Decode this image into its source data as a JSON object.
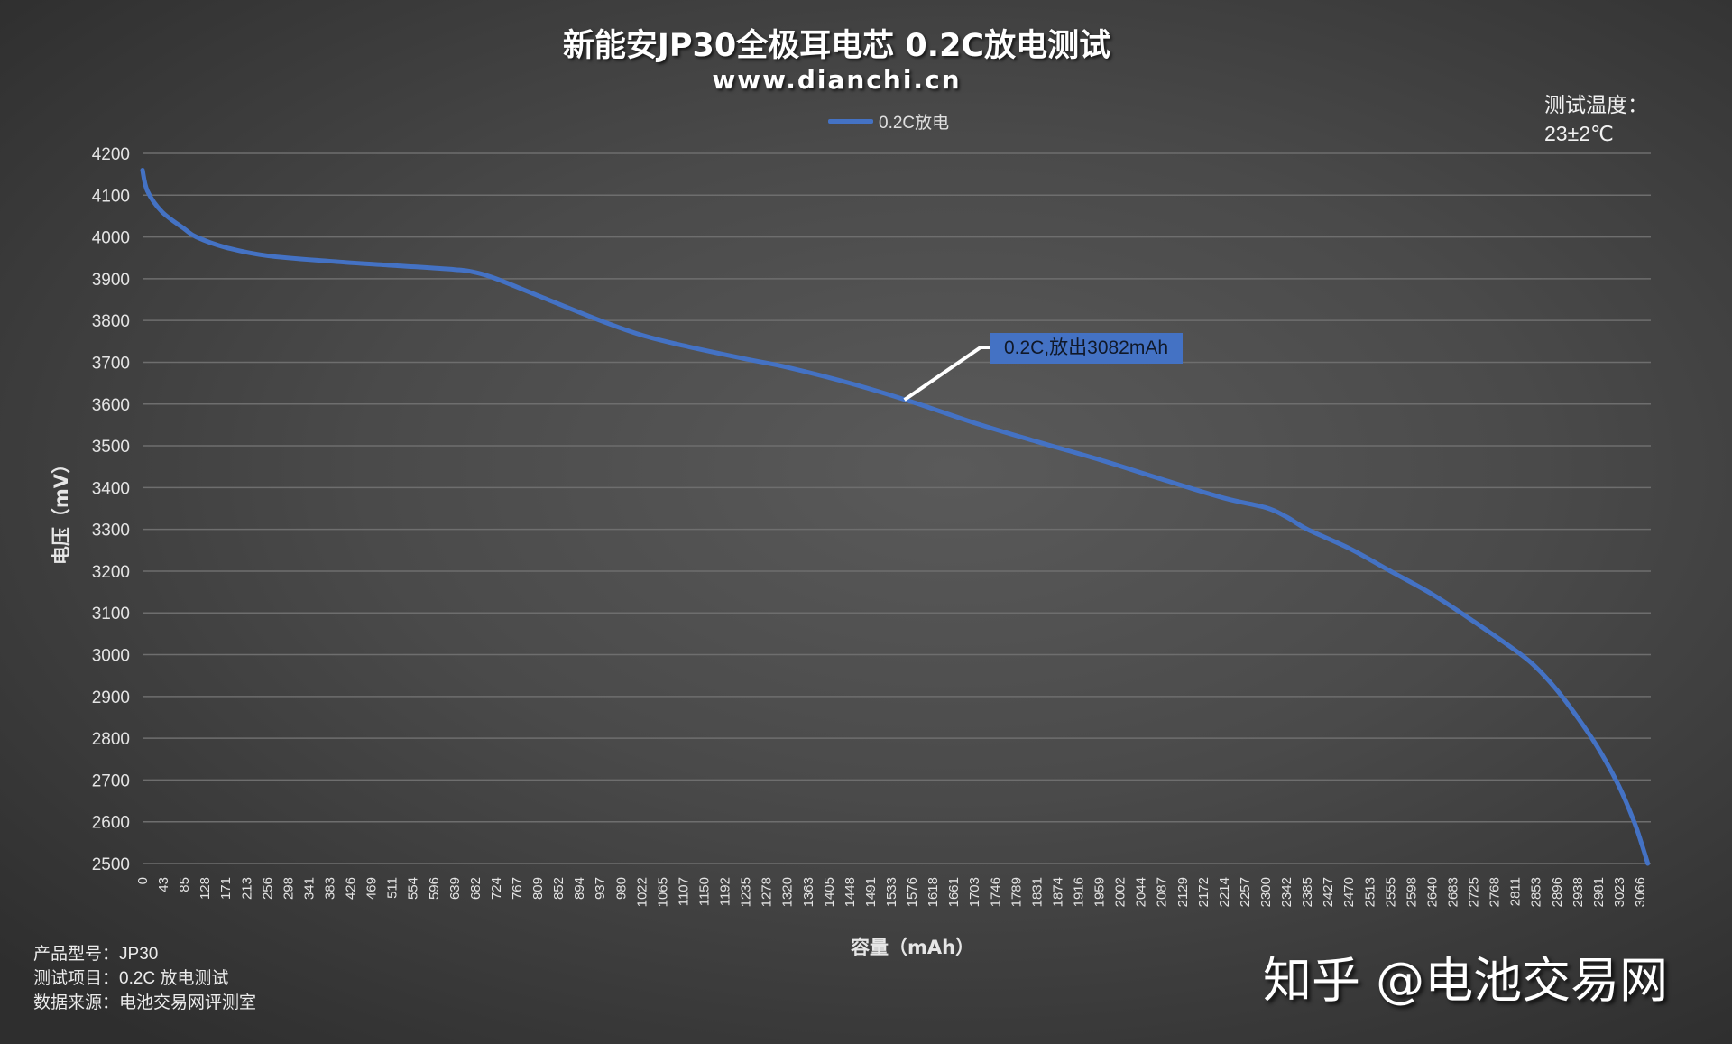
{
  "header": {
    "title": "新能安JP30全极耳电芯 0.2C放电测试",
    "subtitle": "www.dianchi.cn"
  },
  "legend": {
    "series_label": "0.2C放电",
    "series_color": "#4472c4"
  },
  "test_conditions": {
    "temperature_label": "测试温度：",
    "temperature_value": "23±2℃"
  },
  "annotation": {
    "text": "0.2C,放出3082mAh",
    "background_color": "#4472c4",
    "anchor_mAh": 1560,
    "anchor_mV": 3610
  },
  "axes": {
    "y_title": "电压（mV）",
    "x_title": "容量（mAh）"
  },
  "footnotes": {
    "model_label": "产品型号：",
    "model_value": "JP30",
    "test_item_label": "测试项目：",
    "test_item_value": "0.2C 放电测试",
    "source_label": "数据来源：",
    "source_value": "电池交易网评测室"
  },
  "watermark": "知乎 @电池交易网",
  "colors": {
    "line": "#4472c4",
    "gridline": "#6e6e6e",
    "annotation_leader": "#ffffff"
  },
  "chart_data": {
    "type": "line",
    "title": "新能安JP30全极耳电芯 0.2C放电测试",
    "subtitle": "www.dianchi.cn",
    "xlabel": "容量（mAh）",
    "ylabel": "电压（mV）",
    "ylim": [
      2500,
      4200
    ],
    "yticks": [
      4200,
      4100,
      4000,
      3900,
      3800,
      3700,
      3600,
      3500,
      3400,
      3300,
      3200,
      3100,
      3000,
      2900,
      2800,
      2700,
      2600,
      2500
    ],
    "xticks": [
      "0",
      "43",
      "85",
      "128",
      "171",
      "213",
      "256",
      "298",
      "341",
      "383",
      "426",
      "469",
      "511",
      "554",
      "596",
      "639",
      "682",
      "724",
      "767",
      "809",
      "852",
      "894",
      "937",
      "980",
      "1022",
      "1065",
      "1107",
      "1150",
      "1192",
      "1235",
      "1278",
      "1320",
      "1363",
      "1405",
      "1448",
      "1491",
      "1533",
      "1576",
      "1618",
      "1661",
      "1703",
      "1746",
      "1789",
      "1831",
      "1874",
      "1916",
      "1959",
      "2002",
      "2044",
      "2087",
      "2129",
      "2172",
      "2214",
      "2257",
      "2300",
      "2342",
      "2385",
      "2427",
      "2470",
      "2513",
      "2555",
      "2598",
      "2640",
      "2683",
      "2725",
      "2768",
      "2811",
      "2853",
      "2896",
      "2938",
      "2981",
      "3023",
      "3066"
    ],
    "grid": "horizontal",
    "legend_position": "top",
    "annotations": [
      "0.2C,放出3082mAh"
    ],
    "series": [
      {
        "name": "0.2C放电",
        "x": [
          0,
          10,
          40,
          85,
          110,
          170,
          256,
          383,
          511,
          639,
          682,
          724,
          809,
          937,
          1022,
          1107,
          1235,
          1320,
          1448,
          1576,
          1703,
          1831,
          1959,
          2087,
          2214,
          2300,
          2342,
          2385,
          2470,
          2555,
          2640,
          2725,
          2811,
          2853,
          2896,
          2938,
          2981,
          3023,
          3054,
          3070,
          3082
        ],
        "values": [
          4160,
          4110,
          4060,
          4020,
          4000,
          3975,
          3955,
          3942,
          3932,
          3922,
          3915,
          3900,
          3860,
          3800,
          3765,
          3740,
          3708,
          3688,
          3650,
          3605,
          3555,
          3510,
          3467,
          3420,
          3375,
          3352,
          3330,
          3300,
          3255,
          3200,
          3145,
          3080,
          3010,
          2970,
          2915,
          2850,
          2775,
          2685,
          2600,
          2545,
          2500
        ]
      }
    ]
  }
}
